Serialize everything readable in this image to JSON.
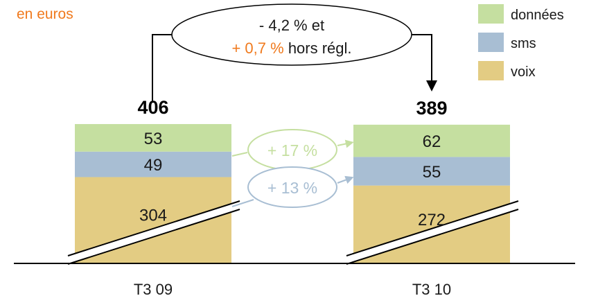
{
  "chart_data": {
    "type": "bar",
    "stacked": true,
    "unit_label": "en euros",
    "categories": [
      "T3 09",
      "T3 10"
    ],
    "totals": [
      406,
      389
    ],
    "series": [
      {
        "name": "voix",
        "values": [
          304,
          272
        ],
        "color": "#e3cc83"
      },
      {
        "name": "sms",
        "values": [
          49,
          55
        ],
        "color": "#a8bed3"
      },
      {
        "name": "données",
        "values": [
          53,
          62
        ],
        "color": "#c5dfa0"
      }
    ],
    "legend_position": "top-right",
    "axis_break": true,
    "annotations": {
      "total_change": {
        "line1": "- 4,2 % et",
        "line2_highlight": "+ 0,7 %",
        "line2_rest": "hors régl."
      },
      "series_changes": [
        {
          "series": "données",
          "label": "+ 17 %",
          "color": "#c5dfa0"
        },
        {
          "series": "sms",
          "label": "+ 13 %",
          "color": "#a8bed3"
        }
      ]
    },
    "colors": {
      "accent": "#f07a1e",
      "text": "#1a1a1a"
    }
  }
}
